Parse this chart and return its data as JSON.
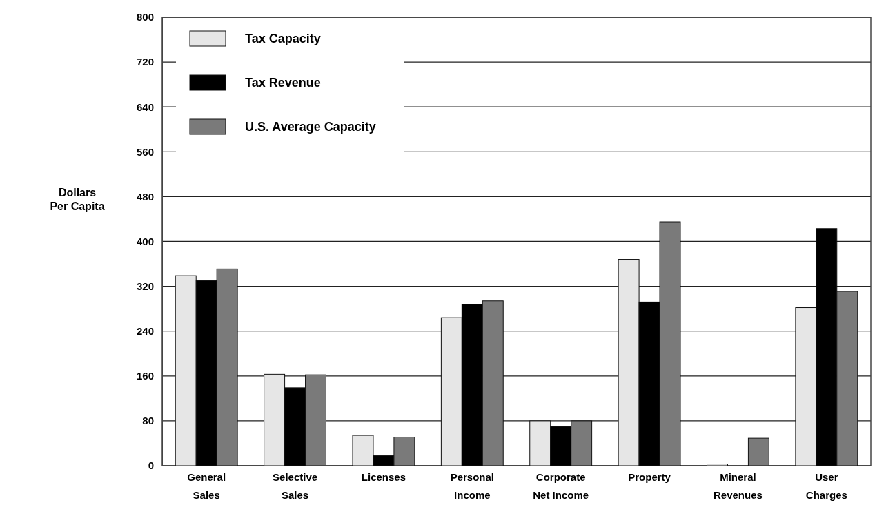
{
  "chart_data": {
    "type": "bar",
    "ylabel": "Dollars Per Capita",
    "categories": [
      "General Sales",
      "Selective Sales",
      "Licenses",
      "Personal Income",
      "Corporate Net Income",
      "Property",
      "Mineral Revenues",
      "User Charges"
    ],
    "series": [
      {
        "name": "Tax Capacity",
        "color": "#e6e6e6",
        "values": [
          339,
          163,
          54,
          264,
          80,
          368,
          3,
          282
        ]
      },
      {
        "name": "Tax Revenue",
        "color": "#000000",
        "values": [
          330,
          139,
          18,
          288,
          70,
          292,
          0,
          423
        ]
      },
      {
        "name": "U.S. Average Capacity",
        "color": "#7a7a7a",
        "values": [
          351,
          162,
          51,
          294,
          80,
          435,
          49,
          311
        ]
      }
    ],
    "ylim": [
      0,
      800
    ],
    "yticks": [
      0,
      80,
      160,
      240,
      320,
      400,
      480,
      560,
      640,
      720,
      800
    ],
    "grid": "y",
    "legend": "top left"
  }
}
